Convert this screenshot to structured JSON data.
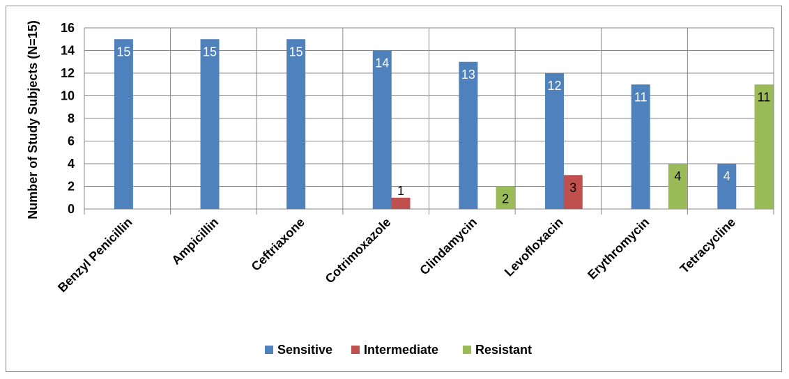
{
  "chart_data": {
    "type": "bar",
    "ylabel": "Number of Study Subjects (N=15)",
    "ylim": [
      0,
      16
    ],
    "yticks": [
      0,
      2,
      4,
      6,
      8,
      10,
      12,
      14,
      16
    ],
    "grid": true,
    "legend_position": "bottom",
    "categories": [
      "Benzyl Penicillin",
      "Ampicillin",
      "Ceftriaxone",
      "Cotrimoxazole",
      "Clindamycin",
      "Levofloxacin",
      "Erythromycin",
      "Tetracycline"
    ],
    "series": [
      {
        "name": "Sensitive",
        "color": "#4F81BD",
        "label_color": "#FFFFFF",
        "values": [
          15,
          15,
          15,
          14,
          13,
          12,
          11,
          4
        ],
        "labels": [
          "15",
          "15",
          "15",
          "14",
          "13",
          "12",
          "11",
          "4"
        ]
      },
      {
        "name": "Intermediate",
        "color": "#C0504D",
        "label_color": "#000000",
        "values": [
          0,
          0,
          0,
          1,
          0,
          3,
          0,
          0
        ],
        "labels": [
          "",
          "",
          "",
          "1",
          "",
          "3",
          "",
          ""
        ]
      },
      {
        "name": "Resistant",
        "color": "#9BBB59",
        "label_color": "#000000",
        "values": [
          0,
          0,
          0,
          0,
          2,
          0,
          4,
          11
        ],
        "labels": [
          "",
          "",
          "",
          "",
          "2",
          "",
          "4",
          "11"
        ]
      }
    ]
  }
}
